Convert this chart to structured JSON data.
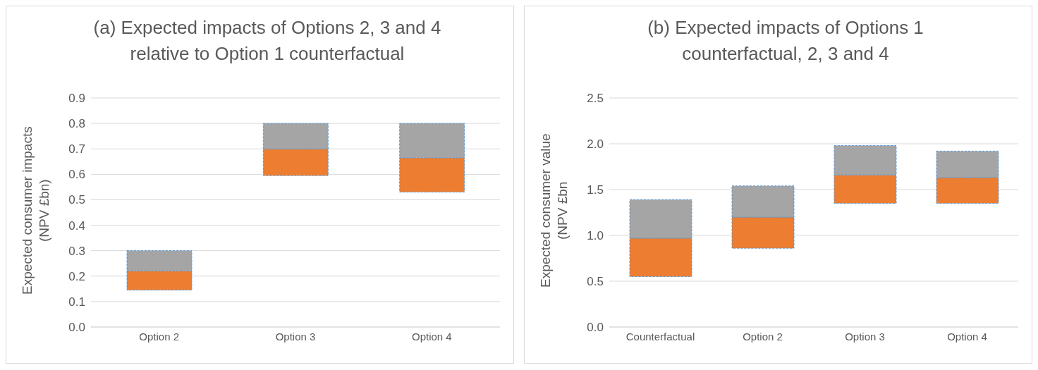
{
  "chart_data": [
    {
      "type": "bar",
      "title": "(a) Expected impacts of Options 2, 3 and 4 relative to Option 1 counterfactual",
      "ylabel": "Expected consumer impacts (NPV £bn)",
      "categories": [
        "Option 2",
        "Option 3",
        "Option 4"
      ],
      "series": [
        {
          "color": "#ed7d31",
          "base": [
            0.145,
            0.595,
            0.53
          ],
          "values": [
            0.075,
            0.105,
            0.135
          ]
        },
        {
          "color": "#a5a5a5",
          "base": [
            0.22,
            0.7,
            0.665
          ],
          "values": [
            0.08,
            0.1,
            0.135
          ]
        }
      ],
      "ylim": [
        0,
        0.9
      ],
      "yticks": [
        {
          "value": 0,
          "label": "0.0"
        },
        0.1,
        0.2,
        0.3,
        0.4,
        0.5,
        0.6,
        0.7,
        0.8,
        0.9
      ],
      "grid": "y"
    },
    {
      "type": "bar",
      "title": "(b) Expected impacts of Options 1 counterfactual, 2, 3 and 4",
      "ylabel": "Expected consumer value (NPV £bn",
      "categories": [
        "Counterfactual",
        "Option 2",
        "Option 3",
        "Option 4"
      ],
      "series": [
        {
          "color": "#ed7d31",
          "base": [
            0.55,
            0.86,
            1.35,
            1.35
          ],
          "values": [
            0.42,
            0.34,
            0.31,
            0.28
          ]
        },
        {
          "color": "#a5a5a5",
          "base": [
            0.97,
            1.2,
            1.66,
            1.63
          ],
          "values": [
            0.42,
            0.34,
            0.32,
            0.29
          ]
        }
      ],
      "ylim": [
        0,
        2.5
      ],
      "yticks": [
        {
          "value": 0,
          "label": "0.0"
        },
        {
          "value": 0.5,
          "label": "0.5"
        },
        {
          "value": 1,
          "label": "1.0"
        },
        {
          "value": 1.5,
          "label": "1.5"
        },
        {
          "value": 2,
          "label": "2.0"
        },
        {
          "value": 2.5,
          "label": "2.5"
        }
      ],
      "grid": "y"
    }
  ]
}
